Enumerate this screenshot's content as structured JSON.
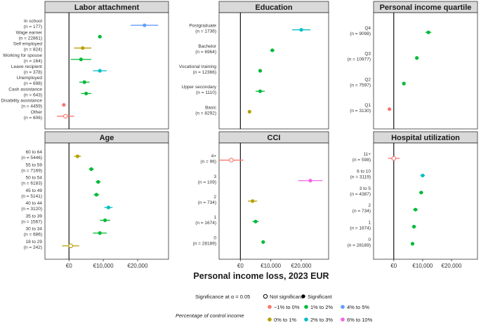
{
  "x_axis": {
    "title": "Personal income loss, 2023 EUR",
    "ticks": [
      0,
      10000,
      20000
    ],
    "tick_labels": [
      "€0",
      "€10,000",
      "€20,000"
    ]
  },
  "legend": {
    "significance_title": "Significance at α = 0.05",
    "significance_items": [
      {
        "label": "Not significant",
        "shape": "open-circle"
      },
      {
        "label": "Significant",
        "shape": "filled-circle"
      }
    ],
    "color_title": "Percentage of control income",
    "color_items": [
      {
        "label": "−1% to 0%",
        "color": "#f8766d"
      },
      {
        "label": "0% to 1%",
        "color": "#b79f00"
      },
      {
        "label": "1% to 2%",
        "color": "#00ba38"
      },
      {
        "label": "2% to 3%",
        "color": "#00bfc4"
      },
      {
        "label": "4% to 5%",
        "color": "#619cff"
      },
      {
        "label": "6% to 10%",
        "color": "#f564e3"
      }
    ]
  },
  "chart_data": [
    {
      "type": "scatter",
      "title": "Labor attachment",
      "xlim": [
        -7000,
        29000
      ],
      "rows": [
        {
          "label": "In school",
          "n": "(n = 177)",
          "value": 22000,
          "lo": 18000,
          "hi": 26000,
          "color": "#619cff",
          "significant": true
        },
        {
          "label": "Wage earner",
          "n": "(n = 22861)",
          "value": 9000,
          "lo": 8500,
          "hi": 9500,
          "color": "#00ba38",
          "significant": true
        },
        {
          "label": "Self employed",
          "n": "(n = 824)",
          "value": 4000,
          "lo": 1500,
          "hi": 6500,
          "color": "#b79f00",
          "significant": true
        },
        {
          "label": "Working for spouse",
          "n": "(n = 164)",
          "value": 3500,
          "lo": 500,
          "hi": 6500,
          "color": "#00ba38",
          "significant": true
        },
        {
          "label": "Leave recipient",
          "n": "(n = 378)",
          "value": 9000,
          "lo": 7000,
          "hi": 11000,
          "color": "#00bfc4",
          "significant": true
        },
        {
          "label": "Unemployed",
          "n": "(n = 698)",
          "value": 4500,
          "lo": 3000,
          "hi": 6000,
          "color": "#00ba38",
          "significant": true
        },
        {
          "label": "Cash assistance",
          "n": "(n = 643)",
          "value": 5000,
          "lo": 3500,
          "hi": 6500,
          "color": "#00ba38",
          "significant": true
        },
        {
          "label": "Disability assistance",
          "n": "(n = 4459)",
          "value": -1500,
          "lo": -2000,
          "hi": -1000,
          "color": "#f8766d",
          "significant": true
        },
        {
          "label": "Other",
          "n": "(n = 606)",
          "value": -1000,
          "lo": -3500,
          "hi": 1500,
          "color": "#f8766d",
          "significant": false
        }
      ]
    },
    {
      "type": "scatter",
      "title": "Education",
      "xlim": [
        -7000,
        29000
      ],
      "rows": [
        {
          "label": "Postgraduate",
          "n": "(n = 1736)",
          "value": 20000,
          "lo": 17000,
          "hi": 23000,
          "color": "#00bfc4",
          "significant": true
        },
        {
          "label": "Bachelor",
          "n": "(n = 6964)",
          "value": 10500,
          "lo": 9800,
          "hi": 11200,
          "color": "#00ba38",
          "significant": true
        },
        {
          "label": "Vocational training",
          "n": "(n = 12366)",
          "value": 6500,
          "lo": 6000,
          "hi": 7000,
          "color": "#00ba38",
          "significant": true
        },
        {
          "label": "Upper secondary",
          "n": "(n = 1110)",
          "value": 6500,
          "lo": 5000,
          "hi": 8000,
          "color": "#00ba38",
          "significant": true
        },
        {
          "label": "Basic",
          "n": "(n = 8292)",
          "value": 3000,
          "lo": 2500,
          "hi": 3500,
          "color": "#b79f00",
          "significant": true
        }
      ]
    },
    {
      "type": "scatter",
      "title": "Personal income quartile",
      "xlim": [
        -7000,
        29000
      ],
      "rows": [
        {
          "label": "Q4",
          "n": "(n = 9098)",
          "value": 12000,
          "lo": 11000,
          "hi": 13000,
          "color": "#00ba38",
          "significant": true
        },
        {
          "label": "Q3",
          "n": "(n = 10977)",
          "value": 8000,
          "lo": 7400,
          "hi": 8600,
          "color": "#00ba38",
          "significant": true
        },
        {
          "label": "Q2",
          "n": "(n = 7597)",
          "value": 3500,
          "lo": 3000,
          "hi": 4000,
          "color": "#00ba38",
          "significant": true
        },
        {
          "label": "Q1",
          "n": "(n = 3130)",
          "value": -1500,
          "lo": -2000,
          "hi": -1000,
          "color": "#f8766d",
          "significant": true
        }
      ]
    },
    {
      "type": "scatter",
      "title": "Age",
      "xlim": [
        -7000,
        29000
      ],
      "rows": [
        {
          "label": "60 to 64",
          "n": "(n = 5446)",
          "value": 2500,
          "lo": 1500,
          "hi": 3500,
          "color": "#b79f00",
          "significant": true
        },
        {
          "label": "55 to 59",
          "n": "(n = 7169)",
          "value": 6500,
          "lo": 5800,
          "hi": 7200,
          "color": "#00ba38",
          "significant": true
        },
        {
          "label": "50 to 54",
          "n": "(n = 6183)",
          "value": 8500,
          "lo": 7800,
          "hi": 9200,
          "color": "#00ba38",
          "significant": true
        },
        {
          "label": "45 to 49",
          "n": "(n = 5141)",
          "value": 8000,
          "lo": 7200,
          "hi": 8800,
          "color": "#00ba38",
          "significant": true
        },
        {
          "label": "40  to  44",
          "n": "(n = 3120)",
          "value": 11500,
          "lo": 10300,
          "hi": 12700,
          "color": "#00bfc4",
          "significant": true
        },
        {
          "label": "35 to 39",
          "n": "(n = 1567)",
          "value": 10500,
          "lo": 9000,
          "hi": 12000,
          "color": "#00ba38",
          "significant": true
        },
        {
          "label": "30 to 34",
          "n": "(n = 686)",
          "value": 9000,
          "lo": 7000,
          "hi": 11000,
          "color": "#00ba38",
          "significant": true
        },
        {
          "label": "18 to 29",
          "n": "(n = 242)",
          "value": 500,
          "lo": -2000,
          "hi": 3000,
          "color": "#b79f00",
          "significant": false
        }
      ]
    },
    {
      "type": "scatter",
      "title": "CCI",
      "xlim": [
        -7000,
        29000
      ],
      "rows": [
        {
          "label": "4+",
          "n": "(n = 96)",
          "value": -3000,
          "lo": -7000,
          "hi": 1000,
          "color": "#f8766d",
          "significant": false
        },
        {
          "label": "3",
          "n": "(n = 109)",
          "value": 23000,
          "lo": 19000,
          "hi": 27000,
          "color": "#f564e3",
          "significant": true
        },
        {
          "label": "2",
          "n": "(n = 734)",
          "value": 4000,
          "lo": 2500,
          "hi": 5500,
          "color": "#b79f00",
          "significant": true
        },
        {
          "label": "1",
          "n": "(n = 1674)",
          "value": 5000,
          "lo": 4000,
          "hi": 6000,
          "color": "#00ba38",
          "significant": true
        },
        {
          "label": "0",
          "n": "(n = 28189)",
          "value": 7500,
          "lo": 7000,
          "hi": 8000,
          "color": "#00ba38",
          "significant": true
        }
      ]
    },
    {
      "type": "scatter",
      "title": "Hospital utilization",
      "xlim": [
        -7000,
        29000
      ],
      "rows": [
        {
          "label": "11+",
          "n": "(n = 598)",
          "value": 0,
          "lo": -2000,
          "hi": 2000,
          "color": "#f8766d",
          "significant": false
        },
        {
          "label": "6 to 10",
          "n": "(n = 3119)",
          "value": 10000,
          "lo": 9200,
          "hi": 10800,
          "color": "#00bfc4",
          "significant": true
        },
        {
          "label": "3 to 5",
          "n": "(n = 4387)",
          "value": 9500,
          "lo": 8800,
          "hi": 10200,
          "color": "#00ba38",
          "significant": true
        },
        {
          "label": "2",
          "n": "(n = 734)",
          "value": 7500,
          "lo": 6700,
          "hi": 8300,
          "color": "#00ba38",
          "significant": true
        },
        {
          "label": "1",
          "n": "(n = 1674)",
          "value": 7000,
          "lo": 6300,
          "hi": 7700,
          "color": "#00ba38",
          "significant": true
        },
        {
          "label": "0",
          "n": "(n = 28189)",
          "value": 6500,
          "lo": 6000,
          "hi": 7000,
          "color": "#00ba38",
          "significant": true
        }
      ]
    }
  ]
}
